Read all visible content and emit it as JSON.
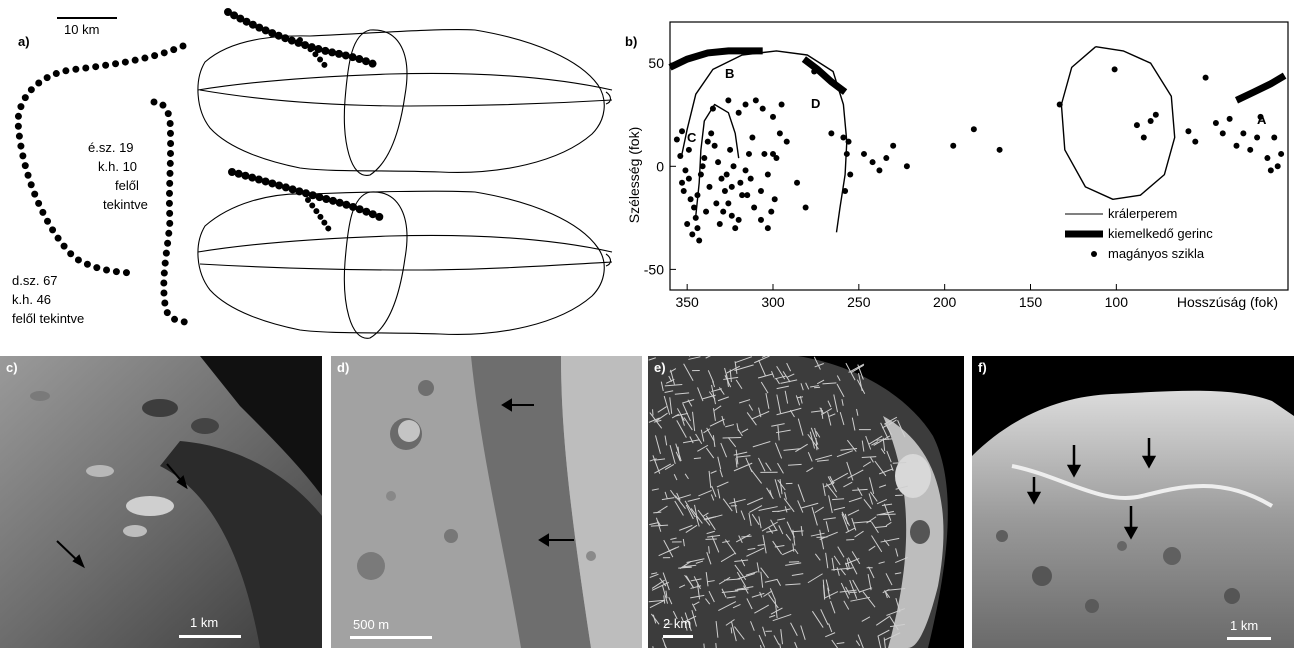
{
  "panel_a": {
    "label": "a)",
    "scale": "10 km",
    "view1": [
      "é.sz. 19",
      "k.h. 10",
      "felől",
      "tekintve"
    ],
    "view2": [
      "d.sz. 67",
      "k.h. 46",
      "felől tekintve"
    ]
  },
  "panel_b": {
    "label": "b)",
    "ylabel": "Szélesség (fok)",
    "xlabel": "Hosszúság (fok)",
    "annotations": [
      "A",
      "B",
      "C",
      "D"
    ],
    "legend": [
      "králerperem",
      "kiemelkedő gerinc",
      "magányos szikla"
    ]
  },
  "chart_data": {
    "type": "scatter",
    "xlabel": "Hosszúság (fok)",
    "ylabel": "Szélesség (fok)",
    "xlim": [
      360,
      0
    ],
    "ylim": [
      -60,
      70
    ],
    "x_ticks": [
      350,
      300,
      250,
      200,
      150,
      100
    ],
    "y_ticks": [
      50,
      0,
      -50
    ],
    "legend_position": "bottom-right",
    "series": [
      {
        "name": "magányos szikla",
        "points": [
          [
            356,
            13
          ],
          [
            354,
            5
          ],
          [
            351,
            -2
          ],
          [
            349,
            -6
          ],
          [
            352,
            -12
          ],
          [
            348,
            -16
          ],
          [
            346,
            -20
          ],
          [
            350,
            -28
          ],
          [
            347,
            -33
          ],
          [
            345,
            -25
          ],
          [
            344,
            -14
          ],
          [
            342,
            -4
          ],
          [
            340,
            4
          ],
          [
            338,
            12
          ],
          [
            336,
            16
          ],
          [
            334,
            10
          ],
          [
            332,
            2
          ],
          [
            330,
            -6
          ],
          [
            328,
            -12
          ],
          [
            326,
            -18
          ],
          [
            324,
            -24
          ],
          [
            322,
            -30
          ],
          [
            320,
            -26
          ],
          [
            318,
            -14
          ],
          [
            316,
            -2
          ],
          [
            314,
            6
          ],
          [
            312,
            14
          ],
          [
            320,
            26
          ],
          [
            316,
            30
          ],
          [
            310,
            32
          ],
          [
            306,
            28
          ],
          [
            300,
            24
          ],
          [
            296,
            16
          ],
          [
            300,
            6
          ],
          [
            303,
            -4
          ],
          [
            307,
            -12
          ],
          [
            299,
            -16
          ],
          [
            298,
            4
          ],
          [
            292,
            12
          ],
          [
            286,
            -8
          ],
          [
            281,
            -20
          ],
          [
            276,
            46
          ],
          [
            266,
            16
          ],
          [
            259,
            14
          ],
          [
            257,
            6
          ],
          [
            255,
            -4
          ],
          [
            258,
            -12
          ],
          [
            256,
            12
          ],
          [
            247,
            6
          ],
          [
            242,
            2
          ],
          [
            238,
            -2
          ],
          [
            234,
            4
          ],
          [
            230,
            10
          ],
          [
            222,
            0
          ],
          [
            195,
            10
          ],
          [
            183,
            18
          ],
          [
            168,
            8
          ],
          [
            133,
            30
          ],
          [
            101,
            47
          ],
          [
            88,
            20
          ],
          [
            84,
            14
          ],
          [
            80,
            22
          ],
          [
            77,
            25
          ],
          [
            58,
            17
          ],
          [
            54,
            12
          ],
          [
            48,
            43
          ],
          [
            42,
            21
          ],
          [
            38,
            16
          ],
          [
            34,
            23
          ],
          [
            30,
            10
          ],
          [
            26,
            16
          ],
          [
            22,
            8
          ],
          [
            18,
            14
          ],
          [
            16,
            24
          ],
          [
            12,
            4
          ],
          [
            10,
            -2
          ],
          [
            8,
            14
          ],
          [
            6,
            0
          ],
          [
            4,
            6
          ],
          [
            344,
            -30
          ],
          [
            343,
            -36
          ],
          [
            353,
            17
          ],
          [
            349,
            8
          ],
          [
            353,
            -8
          ],
          [
            341,
            0
          ],
          [
            337,
            -10
          ],
          [
            333,
            -18
          ],
          [
            329,
            -22
          ],
          [
            339,
            -22
          ],
          [
            327,
            -4
          ],
          [
            323,
            0
          ],
          [
            319,
            -8
          ],
          [
            315,
            -14
          ],
          [
            311,
            -20
          ],
          [
            307,
            -26
          ],
          [
            303,
            -30
          ],
          [
            335,
            28
          ],
          [
            331,
            -28
          ],
          [
            325,
            8
          ],
          [
            313,
            -6
          ],
          [
            305,
            6
          ],
          [
            301,
            -22
          ],
          [
            295,
            30
          ],
          [
            326,
            32
          ],
          [
            324,
            -10
          ]
        ]
      },
      {
        "name": "kiemelkedő gerinc",
        "segments": [
          [
            [
              360,
              48
            ],
            [
              350,
              52
            ],
            [
              338,
              55
            ],
            [
              326,
              56
            ],
            [
              314,
              56
            ],
            [
              306,
              56
            ]
          ],
          [
            [
              282,
              52
            ],
            [
              274,
              47
            ],
            [
              266,
              41
            ],
            [
              258,
              36
            ]
          ],
          [
            [
              30,
              32
            ],
            [
              20,
              36
            ],
            [
              10,
              40
            ],
            [
              2,
              44
            ]
          ]
        ]
      },
      {
        "name": "králerperem",
        "curves": [
          [
            [
              353,
              6
            ],
            [
              350,
              18
            ],
            [
              345,
              35
            ],
            [
              335,
              47
            ],
            [
              318,
              54
            ],
            [
              298,
              56
            ],
            [
              280,
              54
            ],
            [
              265,
              46
            ],
            [
              259,
              30
            ],
            [
              257,
              12
            ],
            [
              258,
              -4
            ],
            [
              261,
              -20
            ],
            [
              263,
              -32
            ]
          ],
          [
            [
              345,
              -24
            ],
            [
              343,
              -8
            ],
            [
              342,
              8
            ],
            [
              340,
              22
            ],
            [
              334,
              30
            ],
            [
              326,
              26
            ],
            [
              322,
              16
            ],
            [
              320,
              4
            ]
          ],
          [
            [
              112,
              58
            ],
            [
              96,
              56
            ],
            [
              80,
              50
            ],
            [
              68,
              34
            ],
            [
              66,
              14
            ],
            [
              72,
              -4
            ],
            [
              86,
              -14
            ],
            [
              102,
              -16
            ],
            [
              118,
              -10
            ],
            [
              130,
              8
            ],
            [
              132,
              30
            ],
            [
              126,
              48
            ],
            [
              112,
              58
            ]
          ]
        ]
      }
    ]
  },
  "panel_c": {
    "label": "c)",
    "scale": "1 km"
  },
  "panel_d": {
    "label": "d)",
    "scale": "500 m"
  },
  "panel_e": {
    "label": "e)",
    "scale": "2 km"
  },
  "panel_f": {
    "label": "f)",
    "scale": "1 km"
  }
}
